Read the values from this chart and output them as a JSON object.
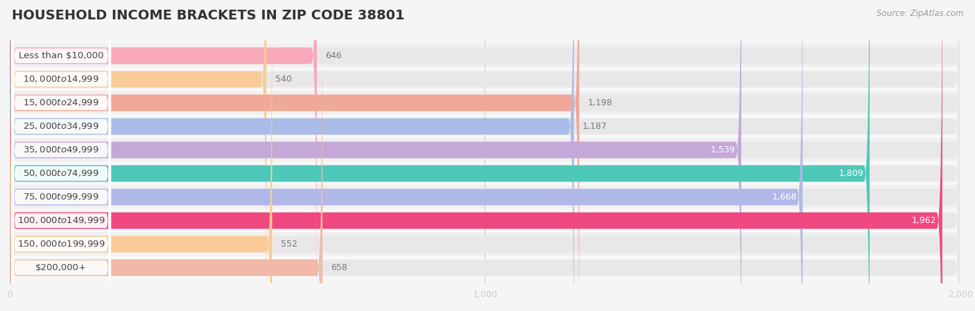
{
  "title": "HOUSEHOLD INCOME BRACKETS IN ZIP CODE 38801",
  "source": "Source: ZipAtlas.com",
  "categories": [
    "Less than $10,000",
    "$10,000 to $14,999",
    "$15,000 to $24,999",
    "$25,000 to $34,999",
    "$35,000 to $49,999",
    "$50,000 to $74,999",
    "$75,000 to $99,999",
    "$100,000 to $149,999",
    "$150,000 to $199,999",
    "$200,000+"
  ],
  "values": [
    646,
    540,
    1198,
    1187,
    1539,
    1809,
    1668,
    1962,
    552,
    658
  ],
  "bar_colors": [
    "#f7a8ba",
    "#f9cb96",
    "#f0a898",
    "#aabce8",
    "#c4a8d8",
    "#4ec8b8",
    "#b0b8e8",
    "#f04880",
    "#f9cb96",
    "#f2b8a8"
  ],
  "value_inside_color": "#ffffff",
  "value_outside_color": "#777777",
  "value_threshold": 1300,
  "xlim": [
    0,
    2000
  ],
  "background_color": "#f5f5f5",
  "bar_bg_color": "#e8e8e8",
  "row_bg_colors": [
    "#f0f0f0",
    "#f8f8f8"
  ],
  "title_fontsize": 14,
  "label_fontsize": 9.5,
  "value_fontsize": 9,
  "source_fontsize": 8.5
}
